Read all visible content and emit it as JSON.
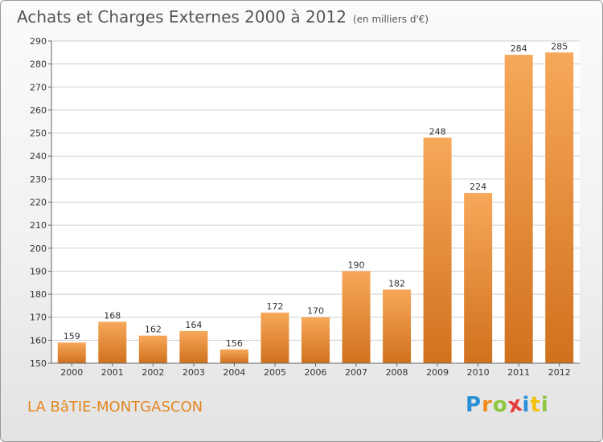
{
  "header": {
    "title": "Achats et Charges Externes 2000 à 2012",
    "unit": "(en milliers d'€)"
  },
  "commune": "LA BâTIE-MONTGASCON",
  "logo": {
    "letters": [
      "P",
      "r",
      "o",
      "x",
      "i",
      "t",
      "i"
    ],
    "colors": [
      "#2a8fd6",
      "#f08a1c",
      "#8cc63f",
      "#e63b3b",
      "#2a8fd6",
      "#f4c20d",
      "#8cc63f"
    ]
  },
  "colors": {
    "bar_light": "#f7a85a",
    "bar_dark": "#d0711d",
    "title": "#555555",
    "commune": "#e2861f"
  },
  "chart_data": {
    "type": "bar",
    "title": "Achats et Charges Externes 2000 à 2012",
    "subtitle": "(en milliers d'€)",
    "categories": [
      "2000",
      "2001",
      "2002",
      "2003",
      "2004",
      "2005",
      "2006",
      "2007",
      "2008",
      "2009",
      "2010",
      "2011",
      "2012"
    ],
    "values": [
      159,
      168,
      162,
      164,
      156,
      172,
      170,
      190,
      182,
      248,
      224,
      284,
      285
    ],
    "ylim": [
      150,
      290
    ],
    "yticks": [
      150,
      160,
      170,
      180,
      190,
      200,
      210,
      220,
      230,
      240,
      250,
      260,
      270,
      280,
      290
    ],
    "grid": true
  }
}
